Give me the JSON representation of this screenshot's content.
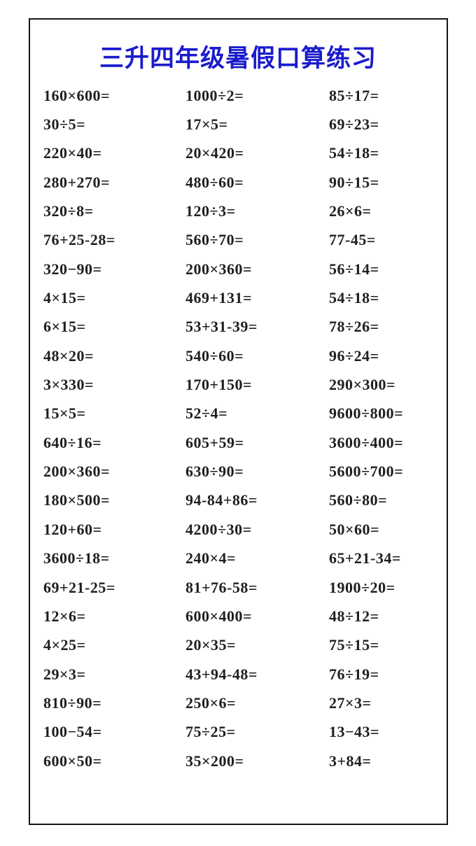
{
  "title": "三升四年级暑假口算练习",
  "accent_color": "#1b1bcd",
  "border_color": "#161616",
  "text_color": "#1f1f1f",
  "problems": {
    "rows": [
      [
        "160×600=",
        "1000÷2=",
        "85÷17="
      ],
      [
        "30÷5=",
        "17×5=",
        "69÷23="
      ],
      [
        "220×40=",
        "20×420=",
        "54÷18="
      ],
      [
        "280+270=",
        "480÷60=",
        "90÷15="
      ],
      [
        "320÷8=",
        "120÷3=",
        "26×6="
      ],
      [
        "76+25-28=",
        "560÷70=",
        "77-45="
      ],
      [
        "320−90=",
        "200×360=",
        "56÷14="
      ],
      [
        "4×15=",
        "469+131=",
        "54÷18="
      ],
      [
        "6×15=",
        "53+31-39=",
        "78÷26="
      ],
      [
        "48×20=",
        "540÷60=",
        "96÷24="
      ],
      [
        "3×330=",
        "170+150=",
        "290×300="
      ],
      [
        "15×5=",
        "52÷4=",
        "9600÷800="
      ],
      [
        "640÷16=",
        "605+59=",
        "3600÷400="
      ],
      [
        "200×360=",
        "630÷90=",
        "5600÷700="
      ],
      [
        "180×500=",
        "94-84+86=",
        "560÷80="
      ],
      [
        "120+60=",
        "4200÷30=",
        "50×60="
      ],
      [
        "3600÷18=",
        "240×4=",
        "65+21-34="
      ],
      [
        "69+21-25=",
        "81+76-58=",
        "1900÷20="
      ],
      [
        "12×6=",
        "600×400=",
        "48÷12="
      ],
      [
        "4×25=",
        "20×35=",
        "75÷15="
      ],
      [
        "29×3=",
        "43+94-48=",
        "76÷19="
      ],
      [
        "810÷90=",
        "250×6=",
        "27×3="
      ],
      [
        "100−54=",
        "75÷25=",
        "13−43="
      ],
      [
        "600×50=",
        "35×200=",
        "3+84="
      ]
    ]
  }
}
